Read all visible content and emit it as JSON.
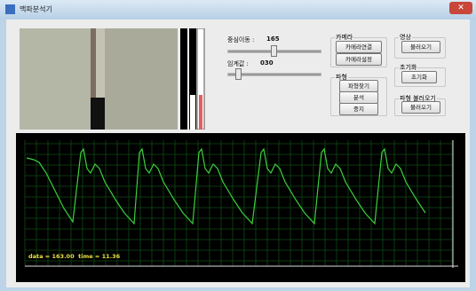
{
  "window": {
    "title": "맥파분석기"
  },
  "controls": {
    "center_label": "중심이동 :",
    "center_value": "165",
    "threshold_label": "임계값 :",
    "threshold_value": "030"
  },
  "groups": {
    "camera": {
      "title": "카메라",
      "buttons": [
        "카메라연결",
        "카메라설정"
      ]
    },
    "waveform": {
      "title": "파형",
      "buttons": [
        "파형찾기",
        "분석",
        "중지"
      ]
    },
    "video": {
      "title": "영상",
      "buttons": [
        "불러오기"
      ]
    },
    "reset": {
      "title": "초기화",
      "buttons": [
        "초기화"
      ]
    },
    "load_waveform": {
      "title": "파형 불러오기",
      "buttons": [
        "불러오기"
      ]
    }
  },
  "status": "data = 163.00  time = 11.36"
}
